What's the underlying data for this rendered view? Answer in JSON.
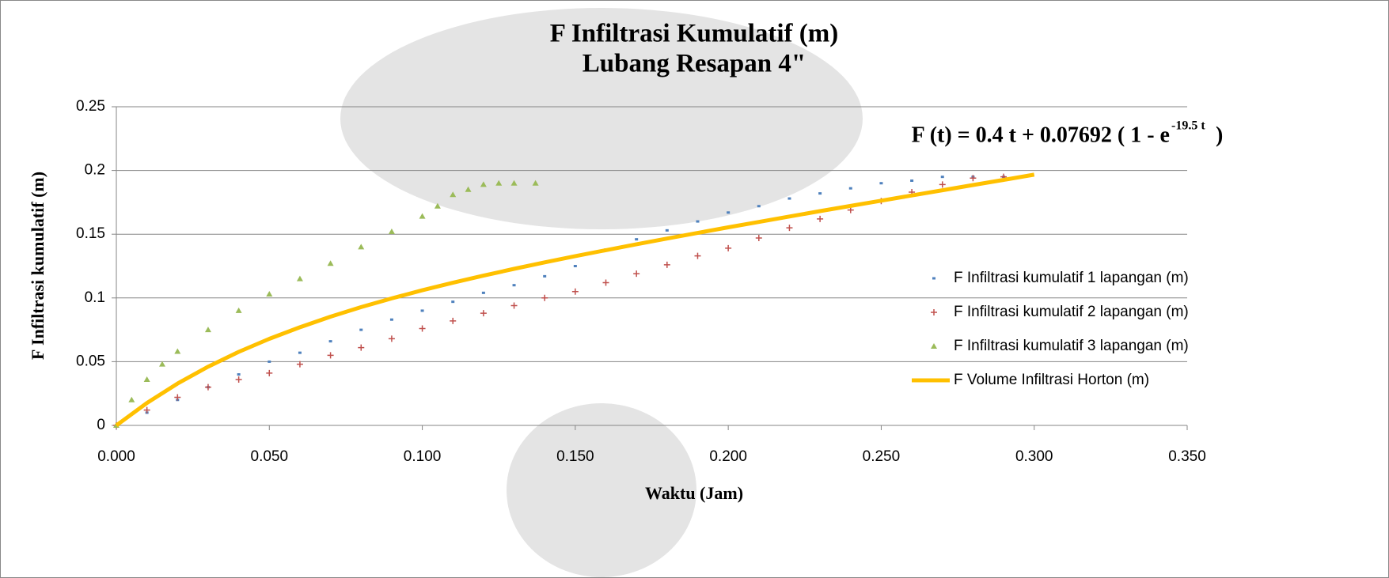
{
  "chart_data": {
    "type": "scatter",
    "title": "F Infiltrasi Kumulatif (m)",
    "subtitle": "Lubang Resapan  4\"",
    "x_label": "Waktu (Jam)",
    "y_label": "F Infiltrasi kumulatif (m)",
    "annotation": {
      "text": "F (t) = 0.4 t + 0.07692 ( 1 - e",
      "superscript": "-19.5 t",
      "tail": ")"
    },
    "xlim": [
      0,
      0.35
    ],
    "ylim": [
      0,
      0.25
    ],
    "xticks": [
      {
        "value": 0,
        "label": "0.000"
      },
      {
        "value": 0.05,
        "label": "0.050"
      },
      {
        "value": 0.1,
        "label": "0.100"
      },
      {
        "value": 0.15,
        "label": "0.150"
      },
      {
        "value": 0.2,
        "label": "0.200"
      },
      {
        "value": 0.25,
        "label": "0.250"
      },
      {
        "value": 0.3,
        "label": "0.300"
      },
      {
        "value": 0.35,
        "label": "0.350"
      }
    ],
    "yticks": [
      0,
      0.05,
      0.1,
      0.15,
      0.2,
      0.25
    ],
    "grid": true,
    "legend": "right",
    "series": [
      {
        "name": "F Infiltrasi kumulatif 1 lapangan (m)",
        "color": "#4f81bd",
        "marker": "dot",
        "x": [
          0,
          0.01,
          0.02,
          0.03,
          0.04,
          0.05,
          0.06,
          0.07,
          0.08,
          0.09,
          0.1,
          0.11,
          0.12,
          0.13,
          0.14,
          0.15,
          0.16,
          0.17,
          0.18,
          0.19,
          0.2,
          0.21,
          0.22,
          0.23,
          0.24,
          0.25,
          0.26,
          0.27,
          0.28,
          0.29
        ],
        "values": [
          0,
          0.01,
          0.02,
          0.03,
          0.04,
          0.05,
          0.057,
          0.066,
          0.075,
          0.083,
          0.09,
          0.097,
          0.104,
          0.11,
          0.117,
          0.125,
          0.138,
          0.146,
          0.153,
          0.16,
          0.167,
          0.172,
          0.178,
          0.182,
          0.186,
          0.19,
          0.192,
          0.195,
          0.195,
          0.195
        ]
      },
      {
        "name": "F Infiltrasi kumulatif 2 lapangan (m)",
        "color": "#c0504d",
        "marker": "plus",
        "x": [
          0,
          0.01,
          0.02,
          0.03,
          0.04,
          0.05,
          0.06,
          0.07,
          0.08,
          0.09,
          0.1,
          0.11,
          0.12,
          0.13,
          0.14,
          0.15,
          0.16,
          0.17,
          0.18,
          0.19,
          0.2,
          0.21,
          0.22,
          0.23,
          0.24,
          0.25,
          0.26,
          0.27,
          0.28,
          0.29
        ],
        "values": [
          0,
          0.012,
          0.022,
          0.03,
          0.036,
          0.041,
          0.048,
          0.055,
          0.061,
          0.068,
          0.076,
          0.082,
          0.088,
          0.094,
          0.1,
          0.105,
          0.112,
          0.119,
          0.126,
          0.133,
          0.139,
          0.147,
          0.155,
          0.162,
          0.169,
          0.176,
          0.183,
          0.189,
          0.194,
          0.195
        ]
      },
      {
        "name": "F Infiltrasi kumulatif 3 lapangan (m)",
        "color": "#9bbb59",
        "marker": "triangle",
        "x": [
          0,
          0.005,
          0.01,
          0.015,
          0.02,
          0.03,
          0.04,
          0.05,
          0.06,
          0.07,
          0.08,
          0.09,
          0.1,
          0.105,
          0.11,
          0.115,
          0.12,
          0.125,
          0.13,
          0.137
        ],
        "values": [
          0,
          0.02,
          0.036,
          0.048,
          0.058,
          0.075,
          0.09,
          0.103,
          0.115,
          0.127,
          0.14,
          0.152,
          0.164,
          0.172,
          0.181,
          0.185,
          0.189,
          0.19,
          0.19,
          0.19
        ]
      },
      {
        "name": "F Volume Infiltrasi Horton (m)",
        "color": "#ffc000",
        "marker": "line",
        "x": [
          0,
          0.01,
          0.02,
          0.03,
          0.04,
          0.05,
          0.06,
          0.07,
          0.08,
          0.09,
          0.1,
          0.11,
          0.12,
          0.13,
          0.14,
          0.15,
          0.16,
          0.17,
          0.18,
          0.19,
          0.2,
          0.21,
          0.22,
          0.23,
          0.24,
          0.25,
          0.26,
          0.27,
          0.28,
          0.29,
          0.3
        ],
        "values": [
          0,
          0.0176,
          0.0328,
          0.0461,
          0.0577,
          0.0679,
          0.077,
          0.0853,
          0.0928,
          0.0996,
          0.106,
          0.1119,
          0.1175,
          0.1228,
          0.1279,
          0.1328,
          0.1375,
          0.1421,
          0.1466,
          0.151,
          0.1554,
          0.1596,
          0.1639,
          0.1681,
          0.1722,
          0.1763,
          0.1804,
          0.1845,
          0.1886,
          0.1926,
          0.1967
        ]
      }
    ]
  }
}
